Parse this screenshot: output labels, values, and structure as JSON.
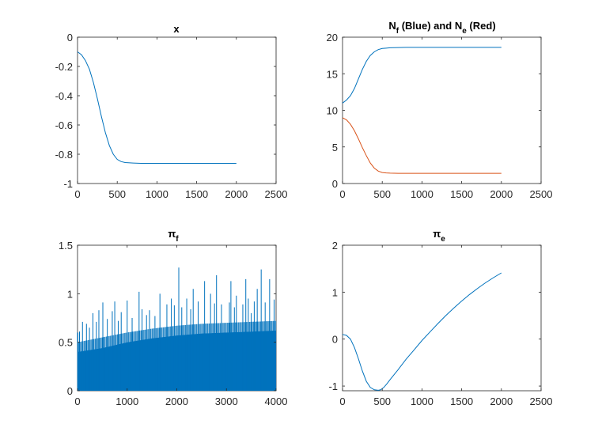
{
  "colors": {
    "series1": "#0072bd",
    "series2": "#d95319",
    "axis": "#262626",
    "background": "#ffffff"
  },
  "chart_data": [
    {
      "type": "line",
      "title": "x",
      "xlim": [
        0,
        2500
      ],
      "ylim": [
        -1,
        0
      ],
      "xticks": [
        "0",
        "500",
        "1000",
        "1500",
        "2000",
        "2500"
      ],
      "yticks": [
        "0",
        "-0.2",
        "-0.4",
        "-0.6",
        "-0.8",
        "-1"
      ],
      "grid": false,
      "series": [
        {
          "x": [
            0,
            50,
            100,
            150,
            200,
            250,
            300,
            350,
            400,
            450,
            500,
            550,
            600,
            700,
            800,
            1000,
            1500,
            2000
          ],
          "values": [
            -0.1,
            -0.12,
            -0.16,
            -0.22,
            -0.31,
            -0.42,
            -0.54,
            -0.65,
            -0.74,
            -0.8,
            -0.835,
            -0.85,
            -0.857,
            -0.86,
            -0.862,
            -0.862,
            -0.862,
            -0.862
          ]
        }
      ]
    },
    {
      "type": "line",
      "title_main": "N",
      "title_sub_1": "f",
      "title_mid": " (Blue) and N",
      "title_sub_2": "e",
      "title_end": " (Red)",
      "xlim": [
        0,
        2500
      ],
      "ylim": [
        0,
        20
      ],
      "xticks": [
        "0",
        "500",
        "1000",
        "1500",
        "2000",
        "2500"
      ],
      "yticks": [
        "0",
        "5",
        "10",
        "15",
        "20"
      ],
      "grid": false,
      "series": [
        {
          "x": [
            0,
            50,
            100,
            150,
            200,
            250,
            300,
            350,
            400,
            450,
            500,
            550,
            600,
            700,
            800,
            1000,
            1500,
            2000
          ],
          "values": [
            11.0,
            11.4,
            12.0,
            13.0,
            14.3,
            15.6,
            16.7,
            17.5,
            18.0,
            18.3,
            18.45,
            18.5,
            18.55,
            18.58,
            18.6,
            18.6,
            18.6,
            18.6
          ]
        },
        {
          "x": [
            0,
            50,
            100,
            150,
            200,
            250,
            300,
            350,
            400,
            450,
            500,
            550,
            600,
            700,
            800,
            1000,
            1500,
            2000
          ],
          "values": [
            9.0,
            8.7,
            8.1,
            7.2,
            6.1,
            4.9,
            3.8,
            2.8,
            2.1,
            1.7,
            1.5,
            1.45,
            1.42,
            1.4,
            1.4,
            1.4,
            1.4,
            1.4
          ]
        }
      ]
    },
    {
      "type": "area",
      "title_main": "π",
      "title_sub": "f",
      "xlim": [
        0,
        4000
      ],
      "ylim": [
        0,
        1.5
      ],
      "xticks": [
        "0",
        "1000",
        "2000",
        "3000",
        "4000"
      ],
      "yticks": [
        "0",
        "0.5",
        "1",
        "1.5"
      ],
      "grid": false,
      "series": [
        {
          "name": "",
          "x": [
            0,
            500,
            1000,
            1500,
            2000,
            2500,
            3000,
            3500,
            4000
          ],
          "values": [
            0.4,
            0.44,
            0.5,
            0.54,
            0.57,
            0.59,
            0.6,
            0.61,
            0.62
          ]
        },
        {
          "name": "",
          "x": [
            0,
            500,
            1000,
            1500,
            2000,
            2500,
            3000,
            3500,
            4000
          ],
          "values": [
            0.5,
            0.55,
            0.6,
            0.64,
            0.67,
            0.69,
            0.7,
            0.71,
            0.72
          ]
        }
      ],
      "spikes": {
        "x": [
          40,
          100,
          180,
          240,
          310,
          380,
          430,
          510,
          600,
          700,
          750,
          820,
          880,
          1000,
          1100,
          1240,
          1300,
          1390,
          1450,
          1560,
          1660,
          1800,
          1890,
          1950,
          2040,
          2100,
          2200,
          2280,
          2330,
          2430,
          2560,
          2680,
          2760,
          2800,
          2900,
          3060,
          3090,
          3160,
          3200,
          3330,
          3390,
          3440,
          3500,
          3560,
          3620,
          3700,
          3780,
          3870,
          3960
        ],
        "values": [
          0.61,
          0.71,
          0.69,
          0.65,
          0.8,
          0.71,
          0.83,
          0.91,
          0.74,
          0.82,
          0.92,
          0.72,
          0.81,
          0.93,
          0.75,
          1.02,
          0.84,
          0.78,
          0.83,
          0.77,
          1.0,
          0.89,
          0.95,
          0.88,
          1.27,
          0.86,
          0.95,
          0.84,
          1.05,
          0.92,
          1.13,
          1.0,
          0.9,
          1.19,
          0.89,
          0.91,
          1.13,
          0.86,
          0.98,
          0.89,
          1.15,
          0.95,
          0.8,
          0.92,
          1.05,
          1.25,
          0.91,
          1.15,
          0.94
        ]
      }
    },
    {
      "type": "line",
      "title_main": "π",
      "title_sub": "e",
      "xlim": [
        0,
        2500
      ],
      "ylim": [
        -1.1,
        2
      ],
      "xticks": [
        "0",
        "500",
        "1000",
        "1500",
        "2000",
        "2500"
      ],
      "yticks": [
        "2",
        "1",
        "0",
        "-1"
      ],
      "ytick_values": [
        2,
        1,
        0,
        -1
      ],
      "grid": false,
      "series": [
        {
          "x": [
            0,
            50,
            100,
            150,
            200,
            250,
            300,
            350,
            400,
            450,
            480,
            520,
            560,
            600,
            700,
            800,
            900,
            1000,
            1100,
            1200,
            1300,
            1400,
            1500,
            1600,
            1700,
            1800,
            1900,
            2000
          ],
          "values": [
            0.1,
            0.08,
            0.0,
            -0.18,
            -0.42,
            -0.68,
            -0.9,
            -1.03,
            -1.08,
            -1.09,
            -1.08,
            -1.03,
            -0.95,
            -0.86,
            -0.65,
            -0.43,
            -0.23,
            -0.03,
            0.15,
            0.33,
            0.5,
            0.66,
            0.81,
            0.95,
            1.08,
            1.2,
            1.31,
            1.41
          ]
        }
      ]
    }
  ]
}
